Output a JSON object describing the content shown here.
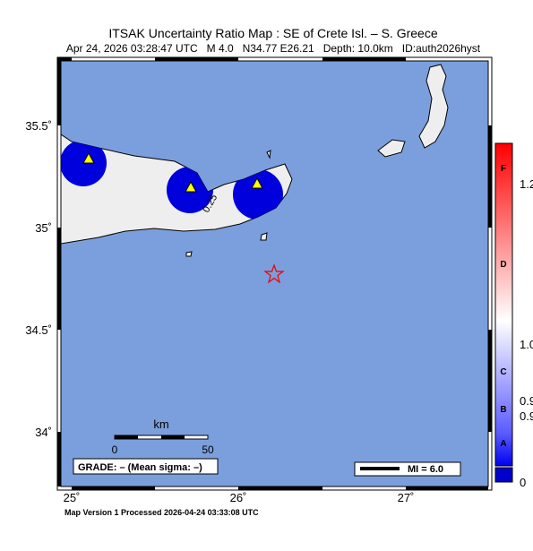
{
  "header": {
    "title": "ITSAK Uncertainty Ratio Map : SE of Crete Isl. – S. Greece",
    "subtitle": "Apr 24, 2026 03:28:47 UTC   M 4.0   N34.77 E26.21   Depth: 10.0km   ID:auth2026hyst"
  },
  "map": {
    "lat_labels": [
      "35.5˚",
      "35˚",
      "34.5˚",
      "34˚"
    ],
    "lon_labels": [
      "25˚",
      "26˚",
      "27˚"
    ],
    "contour_label": "0.25",
    "scale": {
      "unit": "km",
      "start": "0",
      "end": "50"
    },
    "grade": "GRADE: – (Mean sigma: –)",
    "legend": "MI = 6.0"
  },
  "colorbar": {
    "grades": [
      "F",
      "D",
      "C",
      "B",
      "A"
    ],
    "values": [
      "1.2",
      "1.0",
      "0.9",
      "0.9",
      "0"
    ]
  },
  "footer": "Map Version 1 Processed 2026-04-24 03:33:08 UTC"
}
